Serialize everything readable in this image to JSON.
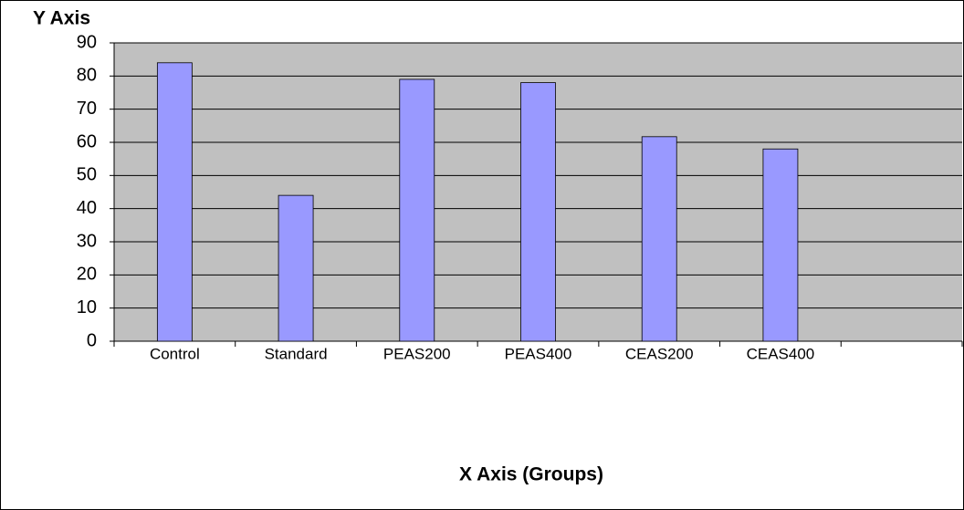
{
  "chart_data": {
    "type": "bar",
    "y_label": "Y Axis",
    "x_label": "X Axis (Groups)",
    "categories": [
      "Control",
      "Standard",
      "PEAS200",
      "PEAS400",
      "CEAS200",
      "CEAS400"
    ],
    "values": [
      84,
      44,
      79,
      78,
      61.7,
      58
    ],
    "color": "#9999ff",
    "ylim": [
      0,
      90
    ],
    "yticks": [
      0,
      10,
      20,
      30,
      40,
      50,
      60,
      70,
      80,
      90
    ],
    "grid": true
  }
}
